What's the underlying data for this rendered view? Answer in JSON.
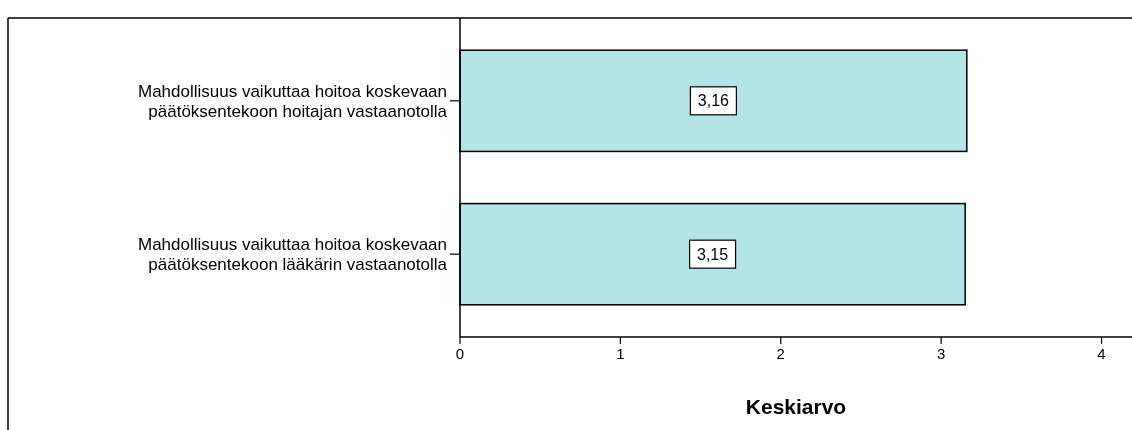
{
  "chart_data": {
    "type": "bar",
    "orientation": "horizontal",
    "xlabel": "Keskiarvo",
    "categories": [
      "Mahdollisuus vaikuttaa hoitoa koskevaan päätöksentekoon hoitajan vastaanotolla",
      "Mahdollisuus vaikuttaa hoitoa koskevaan päätöksentekoon lääkärin vastaanotolla"
    ],
    "values": [
      3.16,
      3.15
    ],
    "value_labels": [
      "3,16",
      "3,15"
    ],
    "color": "#b3e5e6",
    "xlim": [
      0,
      4.19
    ],
    "xticks": [
      0,
      1,
      2,
      3,
      4
    ],
    "grid": false
  }
}
